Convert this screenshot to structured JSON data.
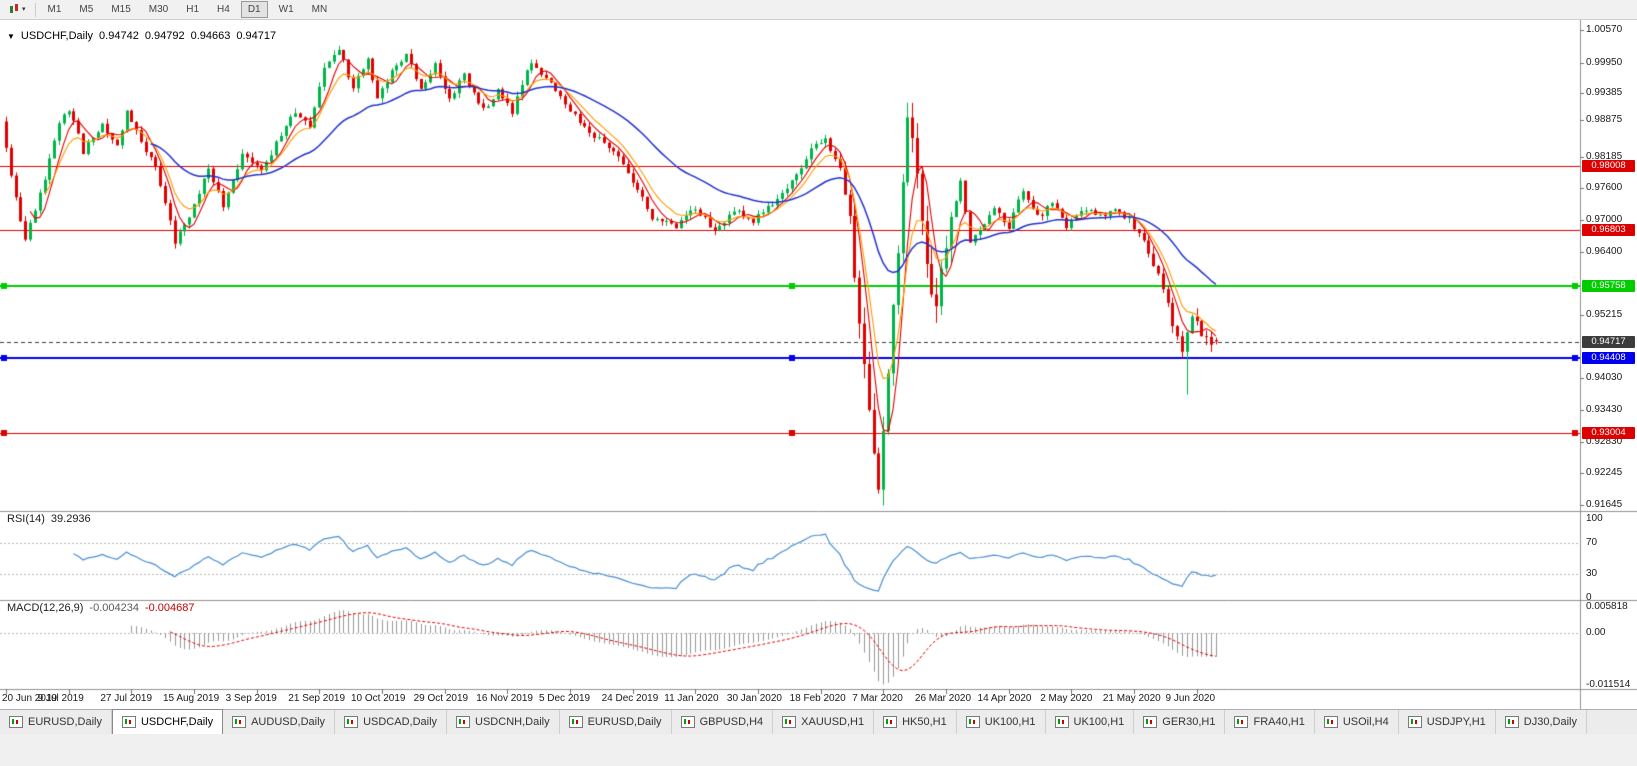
{
  "toolbar": {
    "timeframes": [
      {
        "label": "M1"
      },
      {
        "label": "M5"
      },
      {
        "label": "M15"
      },
      {
        "label": "M30"
      },
      {
        "label": "H1"
      },
      {
        "label": "H4"
      },
      {
        "label": "D1",
        "active": true
      },
      {
        "label": "W1"
      },
      {
        "label": "MN"
      }
    ]
  },
  "chart": {
    "symbol_period": "USDCHF,Daily",
    "open": "0.94742",
    "high": "0.94792",
    "low": "0.94663",
    "close": "0.94717"
  },
  "rsi": {
    "label": "RSI(14)",
    "value": "39.2936",
    "axis": [
      "100",
      "70",
      "30",
      "0"
    ],
    "line_color": "#4a8fd4",
    "levels": [
      70,
      30
    ]
  },
  "macd": {
    "label": "MACD(12,26,9)",
    "main_value": "-0.004234",
    "signal_value": "-0.004687",
    "axis": [
      "0.005818",
      "0.00",
      "-0.011514"
    ],
    "histogram_color": "#999999",
    "signal_color": "#dd0000"
  },
  "tabs": [
    {
      "label": "EURUSD,Daily"
    },
    {
      "label": "USDCHF,Daily",
      "active": true
    },
    {
      "label": "AUDUSD,Daily"
    },
    {
      "label": "USDCAD,Daily"
    },
    {
      "label": "USDCNH,Daily"
    },
    {
      "label": "EURUSD,Daily"
    },
    {
      "label": "GBPUSD,H4"
    },
    {
      "label": "XAUUSD,H1"
    },
    {
      "label": "HK50,H1"
    },
    {
      "label": "UK100,H1"
    },
    {
      "label": "UK100,H1"
    },
    {
      "label": "GER30,H1"
    },
    {
      "label": "FRA40,H1"
    },
    {
      "label": "USOil,H4"
    },
    {
      "label": "USDJPY,H1"
    },
    {
      "label": "DJ30,Daily"
    }
  ],
  "chart_data": {
    "type": "candlestick",
    "symbol": "USDCHF",
    "period": "Daily",
    "price_range": {
      "top": 1.0057,
      "bottom": 0.91645
    },
    "y_axis_ticks": [
      "1.00570",
      "0.99950",
      "0.99385",
      "0.98875",
      "0.98185",
      "0.97600",
      "0.97000",
      "0.96400",
      "0.95215",
      "0.94030",
      "0.93430",
      "0.92830",
      "0.92245",
      "0.91645"
    ],
    "levels": [
      {
        "value": "0.98008",
        "price": 0.98008,
        "color": "#dd0000",
        "width": 1,
        "style": "solid"
      },
      {
        "value": "0.96803",
        "price": 0.96803,
        "color": "#dd0000",
        "width": 1,
        "style": "solid"
      },
      {
        "value": "0.95758",
        "price": 0.95758,
        "color": "#00cc00",
        "width": 2,
        "style": "solid",
        "handles": true
      },
      {
        "value": "0.94717",
        "price": 0.94717,
        "color": "#3c3c3c",
        "width": 1,
        "style": "dashed"
      },
      {
        "value": "0.94408",
        "price": 0.94408,
        "color": "#0000ee",
        "width": 2,
        "style": "solid",
        "handles": true
      },
      {
        "value": "0.93004",
        "price": 0.93004,
        "color": "#dd0000",
        "width": 1,
        "style": "solid",
        "handles": true
      }
    ],
    "date_labels": [
      "20 Jun 2019",
      "9 Jul 2019",
      "27 Jul 2019",
      "15 Aug 2019",
      "3 Sep 2019",
      "21 Sep 2019",
      "10 Oct 2019",
      "29 Oct 2019",
      "16 Nov 2019",
      "5 Dec 2019",
      "24 Dec 2019",
      "11 Jan 2020",
      "30 Jan 2020",
      "18 Feb 2020",
      "7 Mar 2020",
      "26 Mar 2020",
      "14 Apr 2020",
      "2 May 2020",
      "21 May 2020",
      "9 Jun 2020"
    ],
    "candle_count": 252,
    "candles_per_date_label": 13,
    "last_candle": {
      "o": 0.94742,
      "h": 0.94792,
      "l": 0.94663,
      "c": 0.94717
    },
    "colors": {
      "up": "#00b44a",
      "down": "#e00000"
    },
    "moving_averages": [
      {
        "period": 5,
        "type": "sma",
        "color": "#e00000",
        "width": 1.1
      },
      {
        "period": 8,
        "type": "ema",
        "color": "#ff9900",
        "width": 1.1
      },
      {
        "period": 30,
        "type": "ema",
        "color": "#2233cc",
        "width": 1.5
      }
    ],
    "price_path": [
      [
        0,
        0.9885
      ],
      [
        2,
        0.978
      ],
      [
        5,
        0.966
      ],
      [
        9,
        0.978
      ],
      [
        12,
        0.988
      ],
      [
        14,
        0.991
      ],
      [
        17,
        0.983
      ],
      [
        21,
        0.988
      ],
      [
        24,
        0.9845
      ],
      [
        26,
        0.99
      ],
      [
        28,
        0.9865
      ],
      [
        32,
        0.9795
      ],
      [
        36,
        0.966
      ],
      [
        40,
        0.9725
      ],
      [
        43,
        0.98
      ],
      [
        46,
        0.9725
      ],
      [
        50,
        0.9825
      ],
      [
        54,
        0.979
      ],
      [
        58,
        0.986
      ],
      [
        61,
        0.9905
      ],
      [
        64,
        0.987
      ],
      [
        67,
        0.999
      ],
      [
        70,
        1.002
      ],
      [
        73,
        0.995
      ],
      [
        76,
        1.0
      ],
      [
        78,
        0.993
      ],
      [
        81,
        0.998
      ],
      [
        84,
        1.001
      ],
      [
        87,
        0.995
      ],
      [
        90,
        0.999
      ],
      [
        93,
        0.993
      ],
      [
        96,
        0.997
      ],
      [
        100,
        0.9905
      ],
      [
        103,
        0.9945
      ],
      [
        106,
        0.9905
      ],
      [
        110,
        1.0
      ],
      [
        113,
        0.9965
      ],
      [
        116,
        0.993
      ],
      [
        119,
        0.9895
      ],
      [
        123,
        0.986
      ],
      [
        127,
        0.983
      ],
      [
        131,
        0.9775
      ],
      [
        135,
        0.9705
      ],
      [
        140,
        0.9685
      ],
      [
        144,
        0.9725
      ],
      [
        148,
        0.968
      ],
      [
        152,
        0.972
      ],
      [
        156,
        0.97
      ],
      [
        160,
        0.9732
      ],
      [
        164,
        0.977
      ],
      [
        168,
        0.983
      ],
      [
        171,
        0.9852
      ],
      [
        174,
        0.98
      ],
      [
        176,
        0.97
      ],
      [
        178,
        0.95
      ],
      [
        180,
        0.933
      ],
      [
        182,
        0.921
      ],
      [
        184,
        0.94
      ],
      [
        186,
        0.965
      ],
      [
        188,
        0.9905
      ],
      [
        190,
        0.98
      ],
      [
        192,
        0.9605
      ],
      [
        194,
        0.9555
      ],
      [
        197,
        0.97
      ],
      [
        199,
        0.978
      ],
      [
        201,
        0.9655
      ],
      [
        203,
        0.9685
      ],
      [
        206,
        0.972
      ],
      [
        209,
        0.9685
      ],
      [
        212,
        0.976
      ],
      [
        215,
        0.9705
      ],
      [
        218,
        0.973
      ],
      [
        221,
        0.9685
      ],
      [
        225,
        0.972
      ],
      [
        228,
        0.9705
      ],
      [
        231,
        0.9722
      ],
      [
        234,
        0.97
      ],
      [
        237,
        0.9655
      ],
      [
        240,
        0.9605
      ],
      [
        243,
        0.9505
      ],
      [
        245,
        0.9445
      ],
      [
        247,
        0.9525
      ],
      [
        249,
        0.9485
      ],
      [
        251,
        0.94717
      ]
    ]
  }
}
